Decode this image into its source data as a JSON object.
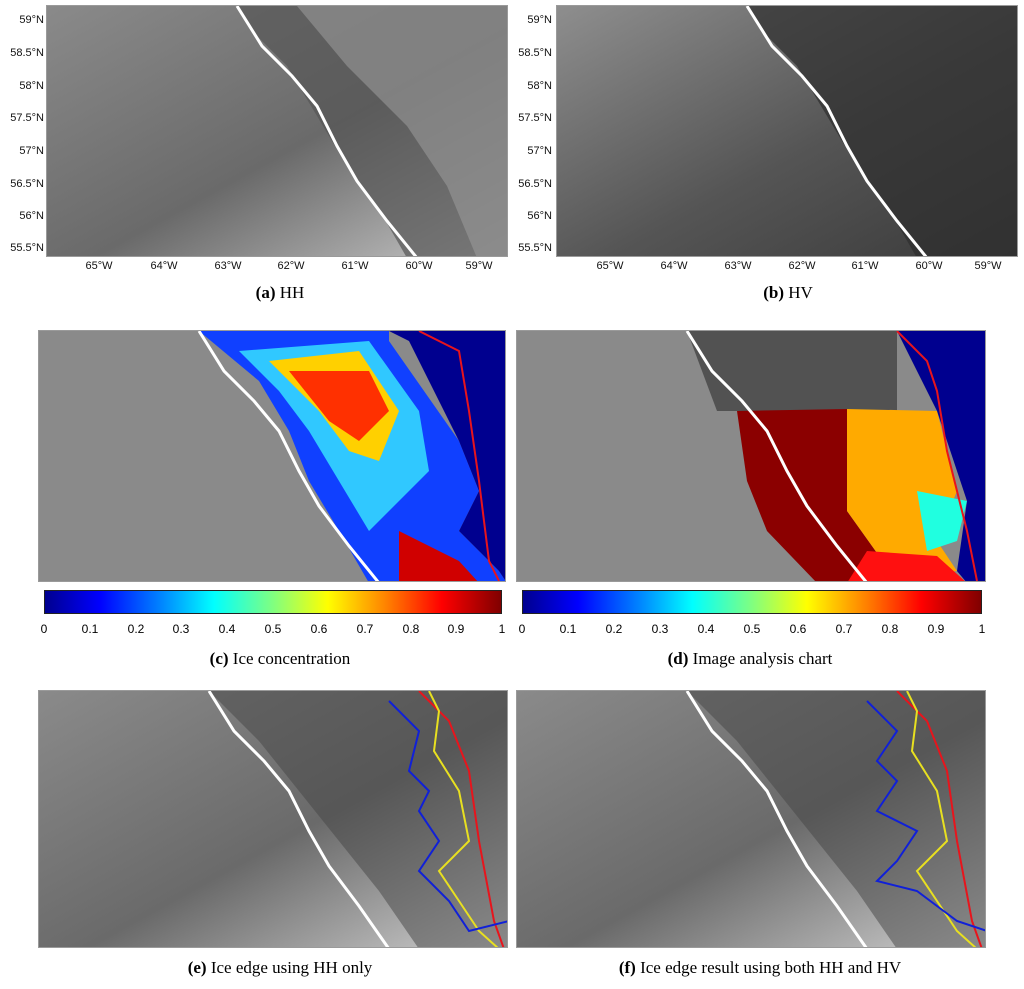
{
  "panels": {
    "a": {
      "letter": "(a)",
      "caption": "HH"
    },
    "b": {
      "letter": "(b)",
      "caption": "HV"
    },
    "c": {
      "letter": "(c)",
      "caption": "Ice concentration"
    },
    "d": {
      "letter": "(d)",
      "caption": "Image analysis chart"
    },
    "e": {
      "letter": "(e)",
      "caption": "Ice edge using HH only"
    },
    "f": {
      "letter": "(f)",
      "caption": "Ice edge result using both HH and HV"
    }
  },
  "lat_labels": [
    "59°N",
    "58.5°N",
    "58°N",
    "57.5°N",
    "57°N",
    "56.5°N",
    "56°N",
    "55.5°N"
  ],
  "lon_labels": [
    "65°W",
    "64°W",
    "63°W",
    "62°W",
    "61°W",
    "60°W",
    "59°W"
  ],
  "colorbar_ticks": [
    "0",
    "0.1",
    "0.2",
    "0.3",
    "0.4",
    "0.5",
    "0.6",
    "0.7",
    "0.8",
    "0.9",
    "1"
  ],
  "colors": {
    "red_edge": "#e8141c",
    "yellow_edge": "#e8e020",
    "blue_edge": "#1020d8",
    "water": "#00008f",
    "ice_max": "#800000"
  }
}
